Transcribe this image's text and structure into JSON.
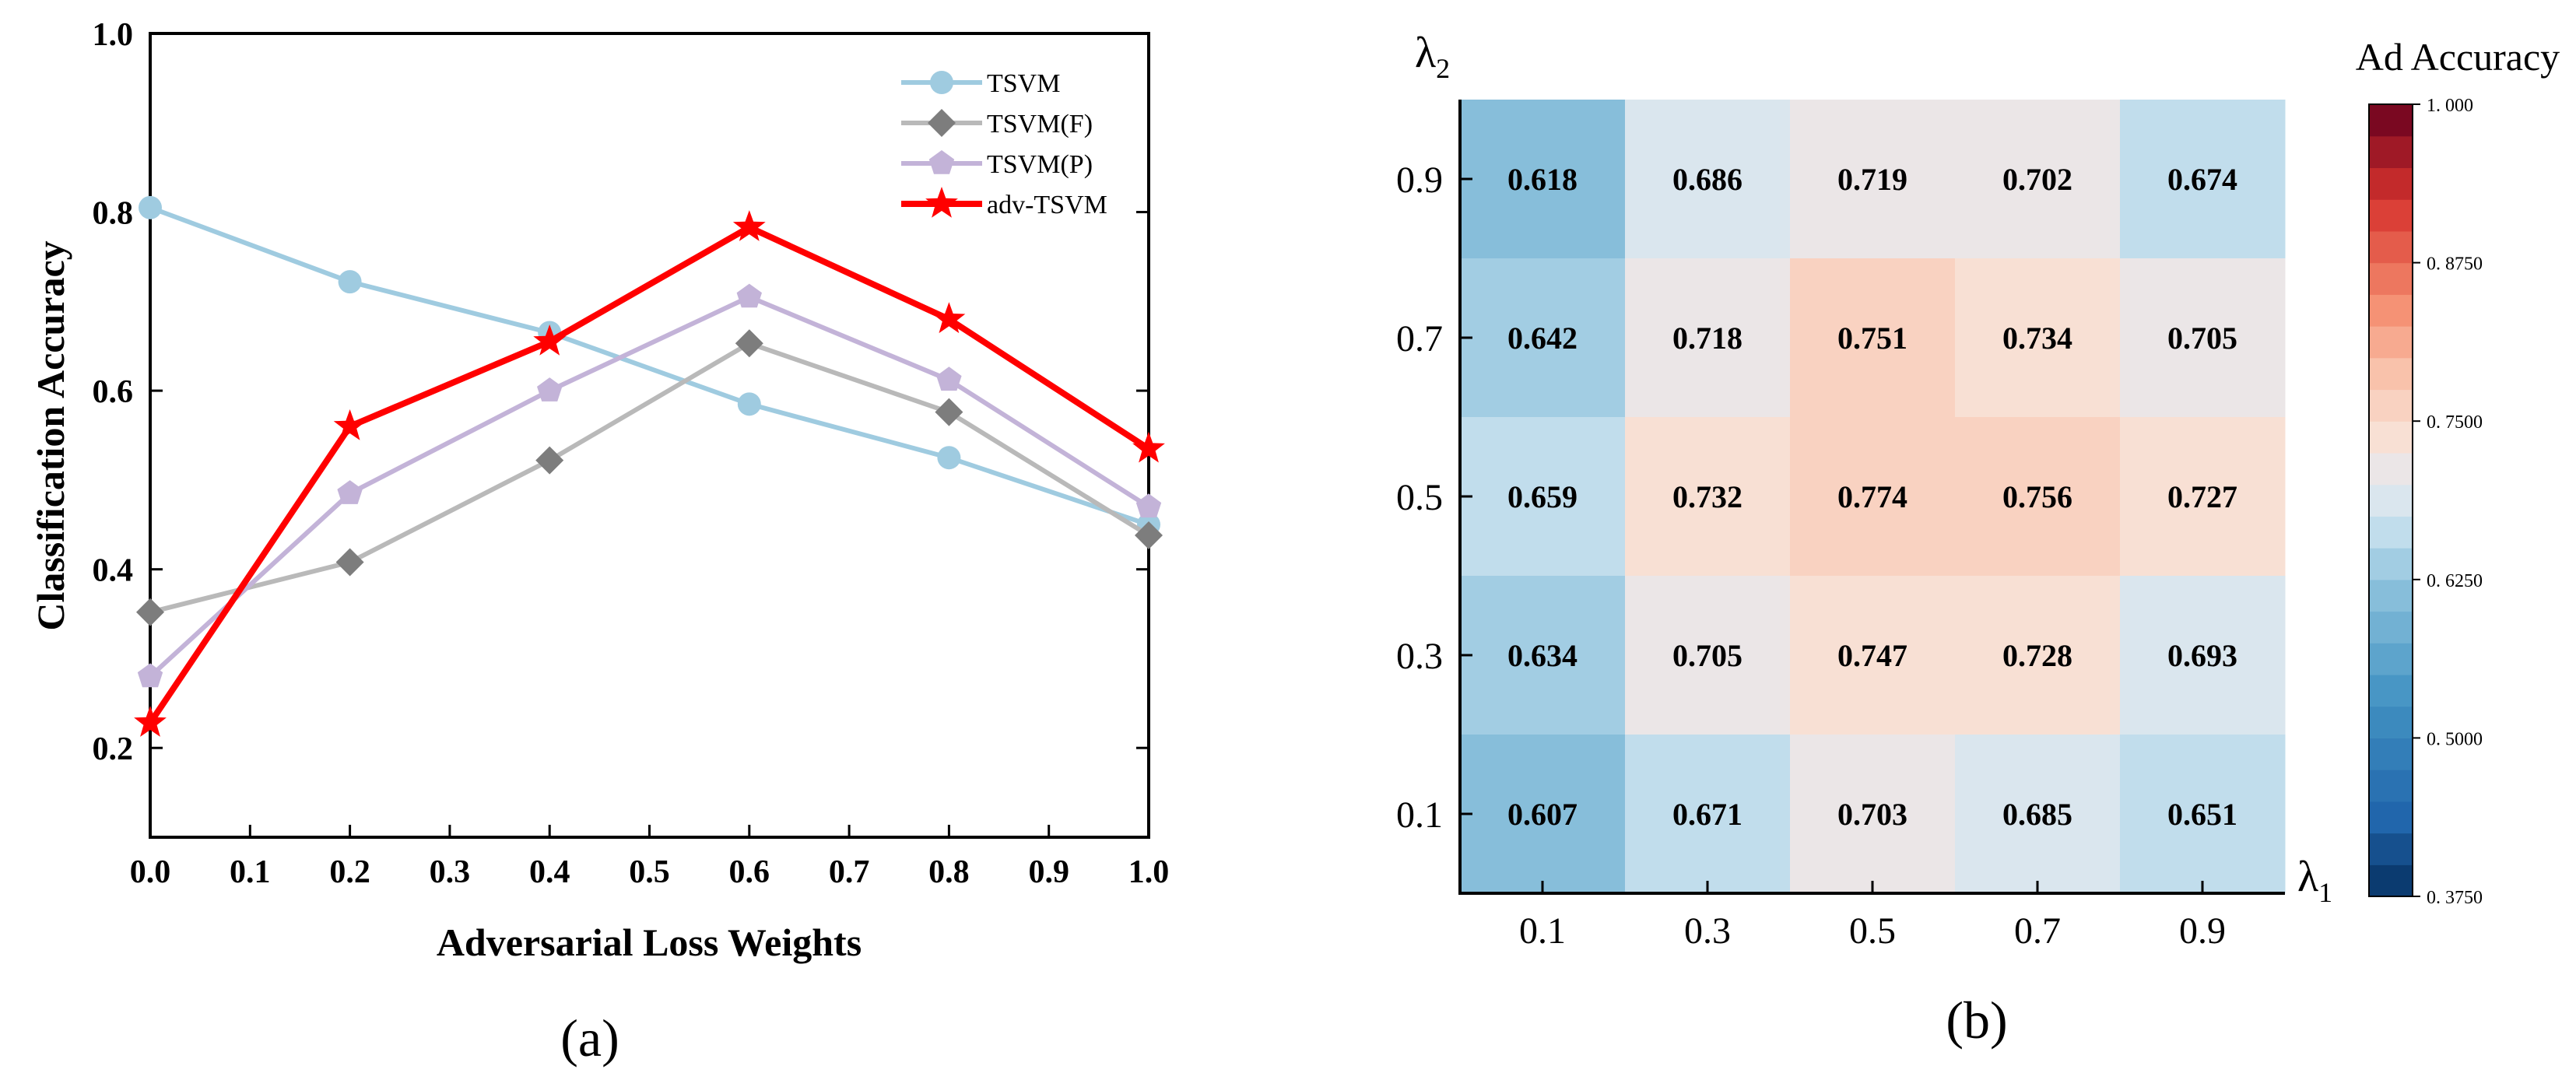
{
  "chart_data": [
    {
      "panel": "(a)",
      "type": "line",
      "xlabel": "Adversarial Loss Weights",
      "ylabel": "Classification Accuracy",
      "x": [
        0.0,
        0.2,
        0.4,
        0.6,
        0.8,
        1.0
      ],
      "xlim": [
        0.0,
        1.0
      ],
      "ylim": [
        0.1,
        1.0
      ],
      "xticks": [
        "0.0",
        "0.1",
        "0.2",
        "0.3",
        "0.4",
        "0.5",
        "0.6",
        "0.7",
        "0.8",
        "0.9",
        "1.0"
      ],
      "yticks": [
        "0.2",
        "0.4",
        "0.6",
        "0.8",
        "1.0"
      ],
      "legend_position": "top-right",
      "series": [
        {
          "name": "TSVM",
          "color": "#9fcbe0",
          "marker": "circle",
          "values": [
            0.805,
            0.722,
            0.665,
            0.585,
            0.525,
            0.45
          ]
        },
        {
          "name": "TSVM(F)",
          "color": "#b9b9b9",
          "marker_color": "#7d7d7d",
          "marker": "diamond",
          "values": [
            0.352,
            0.408,
            0.522,
            0.653,
            0.576,
            0.438
          ]
        },
        {
          "name": "TSVM(P)",
          "color": "#c3b3d8",
          "marker": "pentagon",
          "values": [
            0.28,
            0.485,
            0.6,
            0.705,
            0.612,
            0.47
          ]
        },
        {
          "name": "adv-TSVM",
          "color": "#ff0000",
          "marker": "star",
          "values": [
            0.228,
            0.56,
            0.655,
            0.783,
            0.68,
            0.535
          ]
        }
      ]
    },
    {
      "panel": "(b)",
      "type": "heatmap",
      "xlabel": "λ1",
      "ylabel": "λ2",
      "x_categories": [
        "0.1",
        "0.3",
        "0.5",
        "0.7",
        "0.9"
      ],
      "y_categories": [
        "0.9",
        "0.7",
        "0.5",
        "0.3",
        "0.1"
      ],
      "values": [
        [
          0.618,
          0.686,
          0.719,
          0.702,
          0.674
        ],
        [
          0.642,
          0.718,
          0.751,
          0.734,
          0.705
        ],
        [
          0.659,
          0.732,
          0.774,
          0.756,
          0.727
        ],
        [
          0.634,
          0.705,
          0.747,
          0.728,
          0.693
        ],
        [
          0.607,
          0.671,
          0.703,
          0.685,
          0.651
        ]
      ],
      "colorbar": {
        "title": "Ad Accuracy",
        "range": [
          0.375,
          1.0
        ],
        "ticks": [
          "0. 3750",
          "0. 5000",
          "0. 6250",
          "0. 7500",
          "0. 8750",
          "1. 000"
        ],
        "colormap": "RdBu_r"
      }
    }
  ],
  "panel_labels": {
    "a": "(a)",
    "b": "(b)"
  }
}
